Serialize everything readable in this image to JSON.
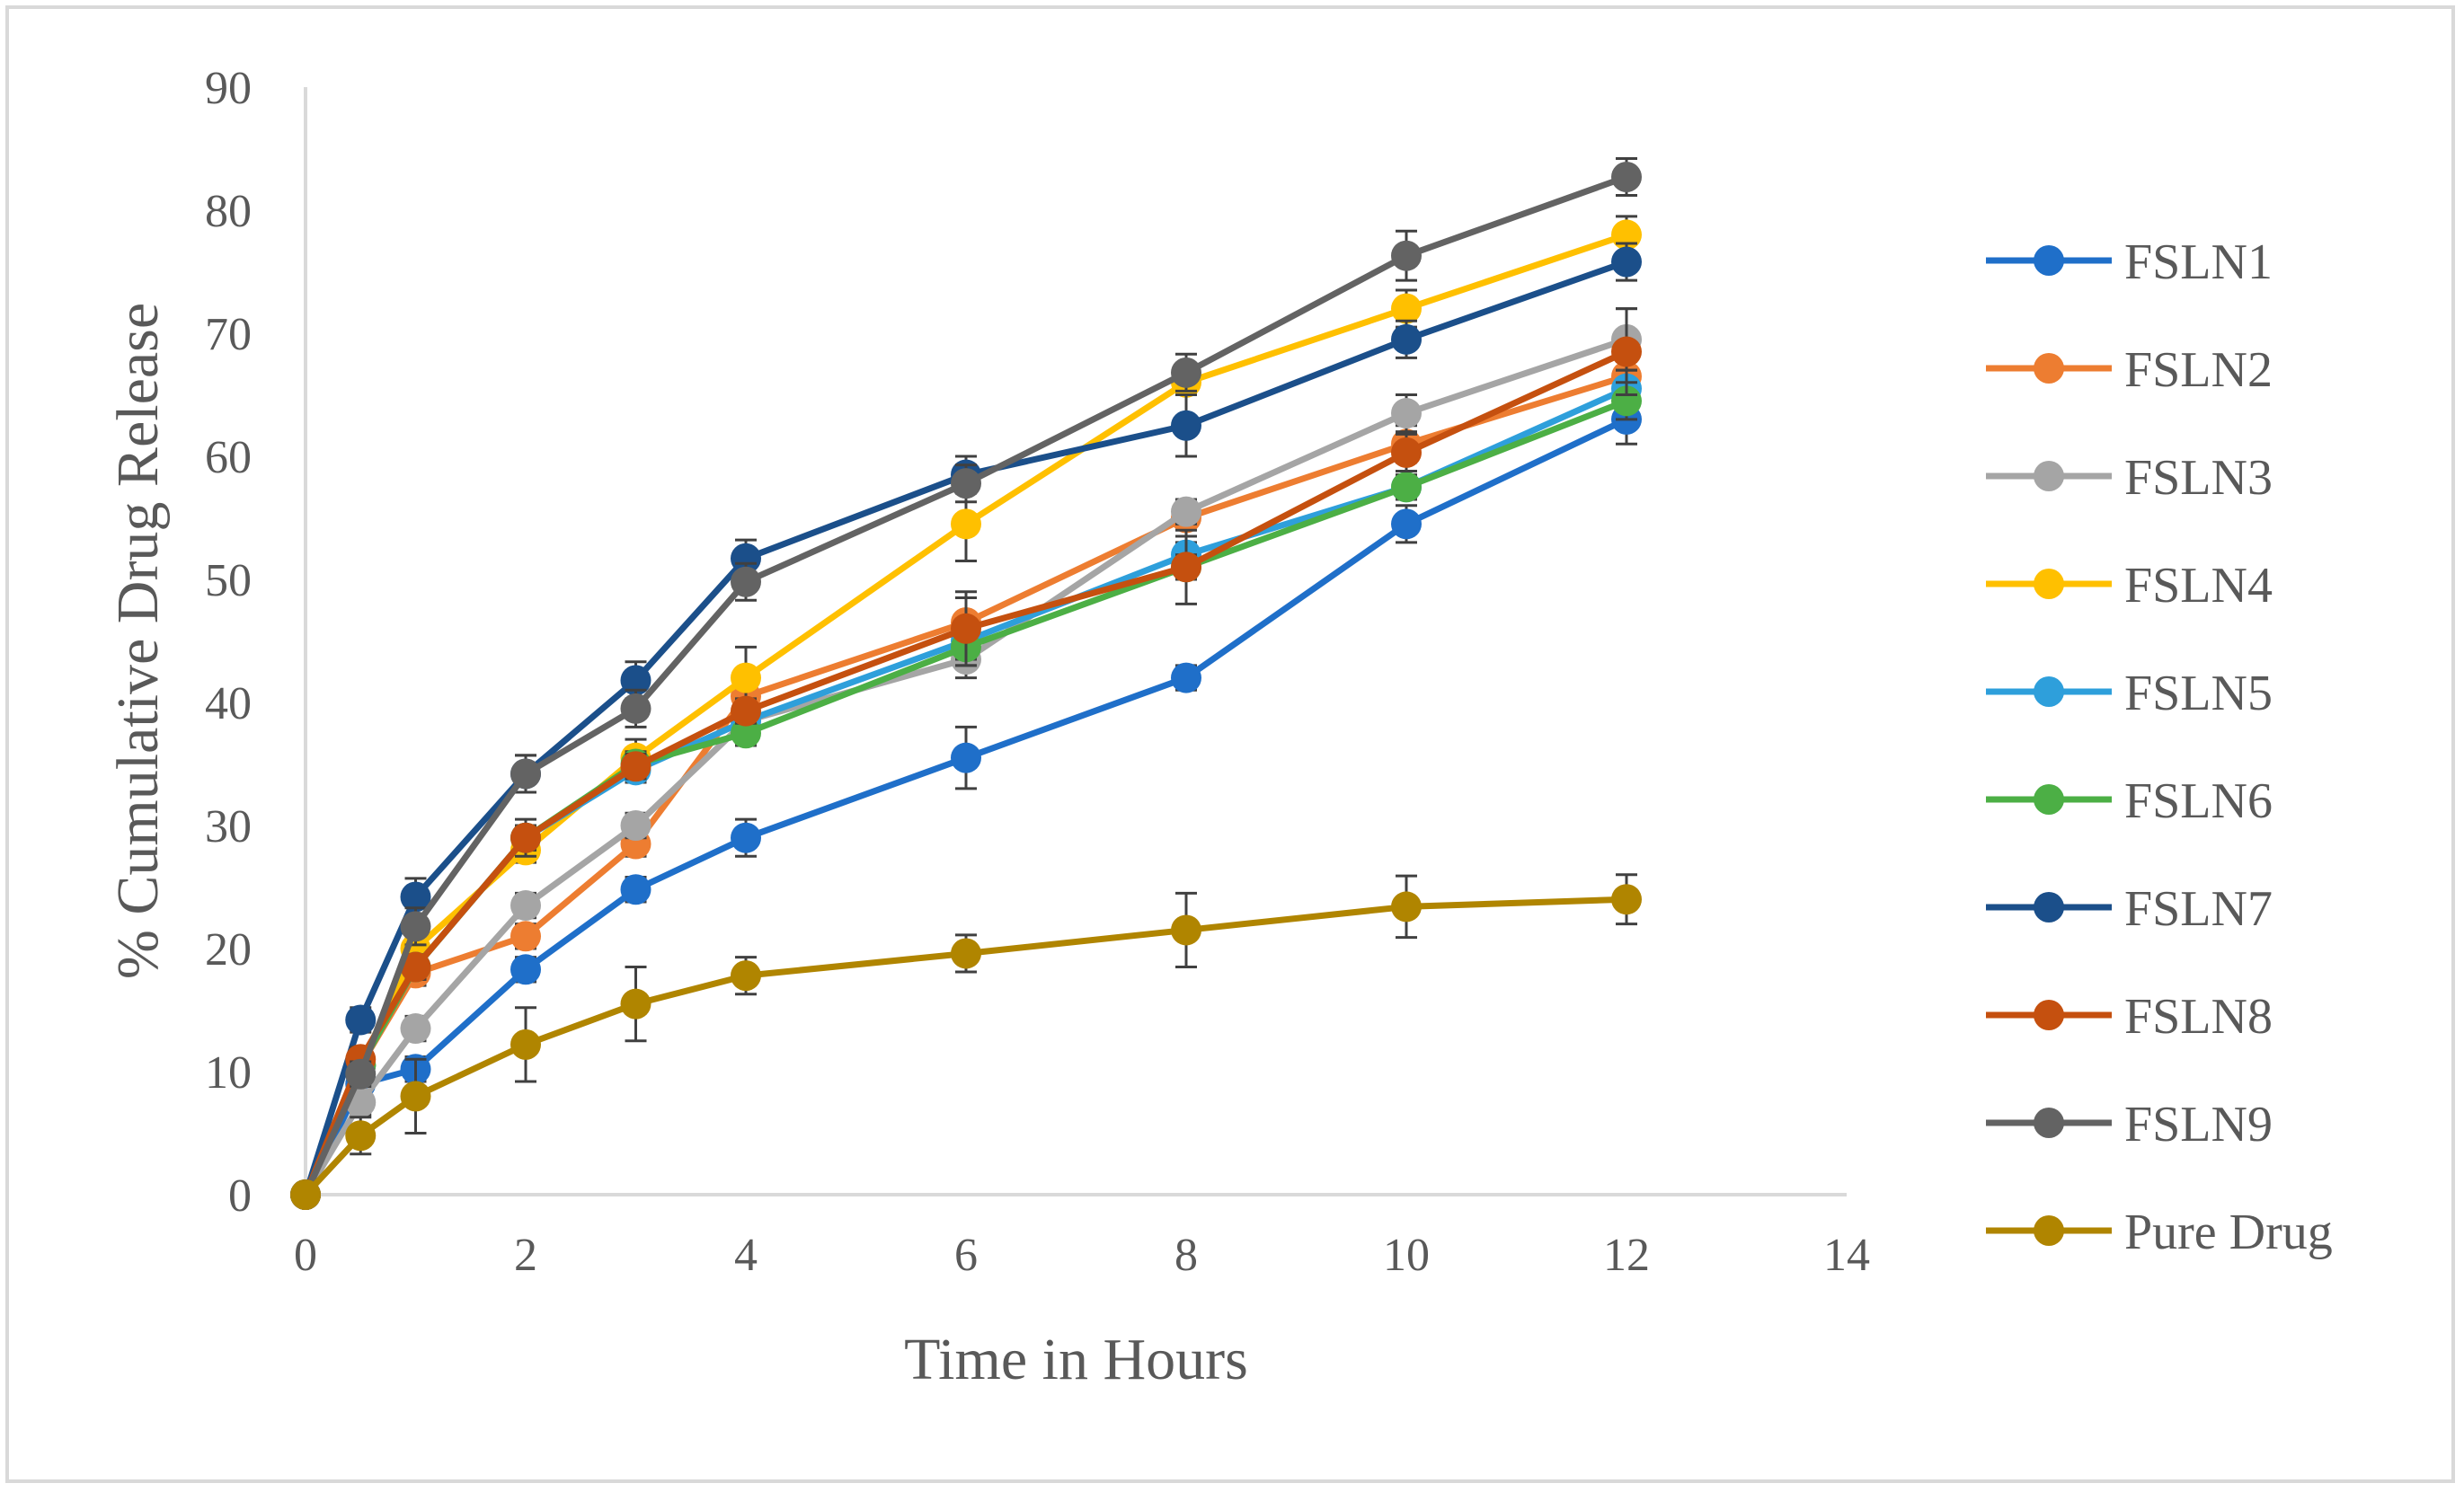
{
  "chart_data": {
    "type": "line",
    "title": "",
    "xlabel": "Time in Hours",
    "ylabel": "% Cumulative Drug Release",
    "xlim": [
      0,
      14
    ],
    "ylim": [
      0,
      90
    ],
    "x_ticks": [
      0,
      2,
      4,
      6,
      8,
      10,
      12,
      14
    ],
    "y_ticks": [
      0,
      10,
      20,
      30,
      40,
      50,
      60,
      70,
      80,
      90
    ],
    "gridlines": false,
    "legend_position": "right",
    "x": [
      0,
      0.5,
      1,
      2,
      3,
      4,
      6,
      8,
      10,
      12
    ],
    "series": [
      {
        "name": "FSLN1",
        "color": "#1f6fc9",
        "values": [
          0,
          9,
          10.2,
          18.3,
          24.8,
          29,
          35.5,
          42,
          54.5,
          63
        ],
        "errors": [
          0,
          1,
          1,
          1,
          1,
          1.5,
          2.5,
          1,
          1.5,
          2
        ]
      },
      {
        "name": "FSLN2",
        "color": "#ed7d31",
        "values": [
          0,
          10.5,
          18,
          21,
          28.5,
          40.5,
          46.5,
          55,
          61,
          66.5
        ],
        "errors": [
          0,
          1,
          1,
          1,
          1,
          1.5,
          2,
          1.5,
          1.5,
          1.5
        ]
      },
      {
        "name": "FSLN3",
        "color": "#a5a5a5",
        "values": [
          0,
          7.5,
          13.5,
          23.5,
          30,
          38.5,
          43.5,
          55.5,
          63.5,
          69.5
        ],
        "errors": [
          0,
          1,
          1,
          1,
          1,
          1,
          1.5,
          1,
          1.5,
          2.5
        ]
      },
      {
        "name": "FSLN4",
        "color": "#ffc000",
        "values": [
          0,
          10.5,
          20,
          28,
          35.5,
          42,
          54.5,
          66,
          72,
          78
        ],
        "errors": [
          0,
          1,
          1,
          1,
          1.5,
          2.5,
          3,
          1,
          1.5,
          1.5
        ]
      },
      {
        "name": "FSLN5",
        "color": "#2e9fdb",
        "values": [
          0,
          10.5,
          18.5,
          29,
          34.5,
          38.5,
          45,
          52,
          57.5,
          65.5
        ],
        "errors": [
          0,
          1,
          1,
          1,
          1,
          1,
          1.5,
          1,
          1,
          1.5
        ]
      },
      {
        "name": "FSLN6",
        "color": "#4caf45",
        "values": [
          0,
          10.5,
          18.5,
          29,
          35,
          37.5,
          44.5,
          51,
          57.5,
          64.5
        ],
        "errors": [
          0,
          1,
          1,
          1,
          1,
          1,
          1.5,
          1,
          1,
          1.5
        ]
      },
      {
        "name": "FSLN7",
        "color": "#1b4f8a",
        "values": [
          0,
          14.2,
          24.2,
          34.2,
          41.8,
          51.7,
          58.5,
          62.5,
          69.5,
          75.8
        ],
        "errors": [
          0,
          1,
          1.5,
          1.5,
          1.5,
          1.5,
          1.5,
          2.5,
          1.5,
          1.5
        ]
      },
      {
        "name": "FSLN8",
        "color": "#c5500f",
        "values": [
          0,
          11,
          18.5,
          29,
          34.8,
          39.3,
          46,
          51,
          60.3,
          68.5
        ],
        "errors": [
          0,
          1,
          1,
          1.5,
          1,
          1,
          3,
          3,
          1.5,
          3.5
        ]
      },
      {
        "name": "FSLN9",
        "color": "#636363",
        "values": [
          0,
          9.8,
          21.8,
          34.2,
          39.5,
          49.8,
          57.8,
          66.8,
          76.3,
          82.7
        ],
        "errors": [
          0,
          1,
          1.5,
          1.5,
          1.5,
          1.5,
          1.5,
          1.5,
          2,
          1.5
        ]
      },
      {
        "name": "Pure Drug",
        "color": "#b08500",
        "values": [
          0,
          4.8,
          8,
          12.2,
          15.5,
          17.8,
          19.6,
          21.5,
          23.4,
          24
        ],
        "errors": [
          0,
          1.5,
          3,
          3,
          3,
          1.5,
          1.5,
          3,
          2.5,
          2
        ]
      }
    ]
  }
}
